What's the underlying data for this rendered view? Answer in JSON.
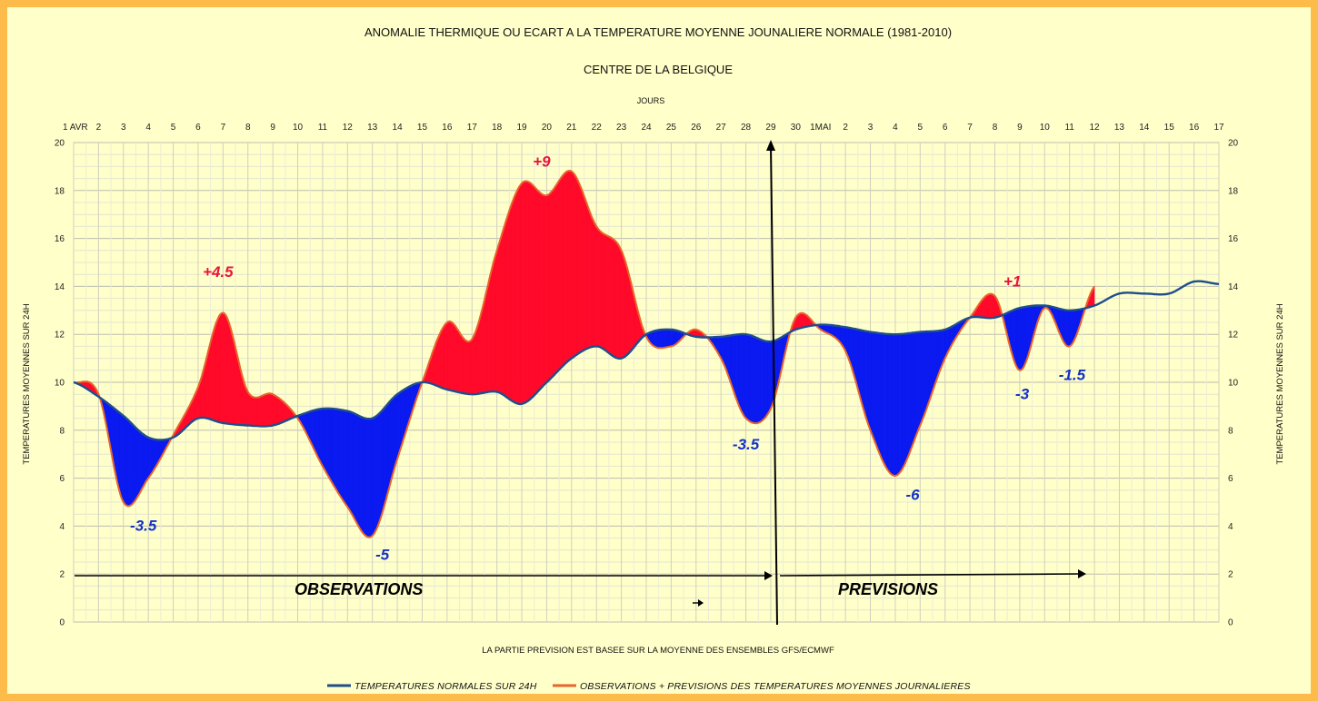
{
  "chart_data": {
    "type": "area",
    "title": "ANOMALIE THERMIQUE OU ECART A LA TEMPERATURE MOYENNE JOUNALIERE NORMALE (1981-2010)",
    "subtitle": "CENTRE DE LA BELGIQUE",
    "xlabel": "JOURS",
    "ylabel": "TEMPERATURES MOYENNES SUR 24H",
    "ylabel_right": "TEMPERATURES MOYENNES SUR 24H",
    "footnote": "LA PARTIE PREVISION EST BASEE SUR LA MOYENNE DES ENSEMBLES GFS/ECMWF",
    "ylim": [
      0,
      20
    ],
    "y_ticks": [
      "0",
      "2",
      "4",
      "6",
      "8",
      "10",
      "12",
      "14",
      "16",
      "18",
      "20"
    ],
    "x_ticks": [
      "1 AVR",
      "2",
      "3",
      "4",
      "5",
      "6",
      "7",
      "8",
      "9",
      "10",
      "11",
      "12",
      "13",
      "14",
      "15",
      "16",
      "17",
      "18",
      "19",
      "20",
      "21",
      "22",
      "23",
      "24",
      "25",
      "26",
      "27",
      "28",
      "29",
      "30",
      "1MAI",
      "2",
      "3",
      "4",
      "5",
      "6",
      "7",
      "8",
      "9",
      "10",
      "11",
      "12",
      "13",
      "14",
      "15",
      "16",
      "17"
    ],
    "grid": true,
    "colors": {
      "normal_line": "#1f4e8c",
      "obs_line": "#e8642b",
      "above_fill": "#ff0a2a",
      "below_fill": "#0a1af0",
      "ann_red": "#e8143c",
      "ann_blue": "#1432c8"
    },
    "series": [
      {
        "name": "TEMPERATURES NORMALES SUR 24H",
        "x": [
          1,
          2,
          3,
          4,
          5,
          6,
          7,
          8,
          9,
          10,
          11,
          12,
          13,
          14,
          15,
          16,
          17,
          18,
          19,
          20,
          21,
          22,
          23,
          24,
          25,
          26,
          27,
          28,
          29,
          30,
          31,
          32,
          33,
          34,
          35,
          36,
          37,
          38,
          39,
          40,
          41,
          42,
          43,
          44,
          45,
          46,
          47
        ],
        "values": [
          10.0,
          9.4,
          8.6,
          7.7,
          7.7,
          8.5,
          8.3,
          8.2,
          8.2,
          8.6,
          8.9,
          8.8,
          8.5,
          9.5,
          10.0,
          9.7,
          9.5,
          9.6,
          9.1,
          10.0,
          11.0,
          11.5,
          11.0,
          12.0,
          12.2,
          11.9,
          11.9,
          12.0,
          11.7,
          12.2,
          12.4,
          12.3,
          12.1,
          12.0,
          12.1,
          12.2,
          12.7,
          12.7,
          13.1,
          13.2,
          13.0,
          13.2,
          13.7,
          13.7,
          13.7,
          14.2,
          14.1
        ]
      },
      {
        "name": "OBSERVATIONS + PREVISIONS DES TEMPERATURES MOYENNES JOURNALIERES",
        "x": [
          1,
          2,
          3,
          4,
          5,
          6,
          7,
          8,
          9,
          10,
          11,
          12,
          13,
          14,
          15,
          16,
          17,
          18,
          19,
          20,
          21,
          22,
          23,
          24,
          25,
          26,
          27,
          28,
          29,
          30,
          31,
          32,
          33,
          34,
          35,
          36,
          37,
          38,
          39,
          40,
          41,
          42
        ],
        "values": [
          10.0,
          9.5,
          5.0,
          6.0,
          7.8,
          9.8,
          12.9,
          9.6,
          9.5,
          8.5,
          6.5,
          4.8,
          3.6,
          6.8,
          10.0,
          12.5,
          11.8,
          15.5,
          18.3,
          17.8,
          18.8,
          16.5,
          15.5,
          11.9,
          11.5,
          12.2,
          11.0,
          8.5,
          8.9,
          12.7,
          12.2,
          11.3,
          8.0,
          6.1,
          8.2,
          11.0,
          12.7,
          13.6,
          10.5,
          13.1,
          11.5,
          14.0
        ]
      }
    ],
    "annotations": [
      {
        "text": "+4.5",
        "color": "red"
      },
      {
        "text": "+9",
        "color": "red"
      },
      {
        "text": "+1",
        "color": "red"
      },
      {
        "text": "-3.5",
        "color": "blue"
      },
      {
        "text": "-5",
        "color": "blue"
      },
      {
        "text": "-3.5",
        "color": "blue"
      },
      {
        "text": "-6",
        "color": "blue"
      },
      {
        "text": "-3",
        "color": "blue"
      },
      {
        "text": "-1.5",
        "color": "blue"
      }
    ],
    "periods": [
      "OBSERVATIONS",
      "PREVISIONS"
    ],
    "legend_position": "bottom"
  }
}
